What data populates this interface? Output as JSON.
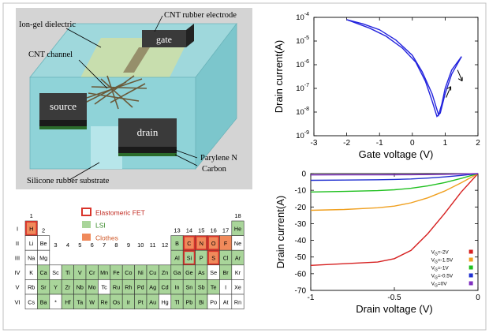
{
  "device": {
    "labels": {
      "ion_gel": "Ion-gel dielectric",
      "cnt_electrode": "CNT rubber electrode",
      "cnt_channel": "CNT channel",
      "gate": "gate",
      "source": "source",
      "drain": "drain",
      "parylene": "Parylene N",
      "carbon": "Carbon",
      "substrate": "Silicone rubber substrate"
    },
    "colors": {
      "gel": "#8fd3d8",
      "electrode": "#3a3a3a",
      "channel_pad": "#c8d9a0",
      "background": "#d4d4d4"
    }
  },
  "periodic_table": {
    "legend": [
      {
        "label": "Elastomeric FET",
        "kind": "outline",
        "color": "#d9342b"
      },
      {
        "label": "LSI",
        "kind": "fill",
        "color": "#a9d59a"
      },
      {
        "label": "Clothes",
        "kind": "fill",
        "color": "#f08a5b"
      }
    ],
    "group_labels": [
      "1",
      "2",
      "3",
      "4",
      "5",
      "6",
      "7",
      "8",
      "9",
      "10",
      "11",
      "12",
      "13",
      "14",
      "15",
      "16",
      "17",
      "18"
    ],
    "period_labels": [
      "I",
      "II",
      "III",
      "IV",
      "V",
      "VI"
    ],
    "elements": [
      {
        "s": "H",
        "p": 1,
        "g": 1,
        "lsi": false,
        "clothes": true,
        "fet": true
      },
      {
        "s": "He",
        "p": 1,
        "g": 18,
        "lsi": true,
        "clothes": false,
        "fet": false
      },
      {
        "s": "Li",
        "p": 2,
        "g": 1,
        "lsi": false,
        "clothes": false,
        "fet": false
      },
      {
        "s": "Be",
        "p": 2,
        "g": 2,
        "lsi": false,
        "clothes": false,
        "fet": false
      },
      {
        "s": "B",
        "p": 2,
        "g": 13,
        "lsi": true,
        "clothes": false,
        "fet": false
      },
      {
        "s": "C",
        "p": 2,
        "g": 14,
        "lsi": false,
        "clothes": true,
        "fet": true
      },
      {
        "s": "N",
        "p": 2,
        "g": 15,
        "lsi": false,
        "clothes": true,
        "fet": true
      },
      {
        "s": "O",
        "p": 2,
        "g": 16,
        "lsi": false,
        "clothes": true,
        "fet": true
      },
      {
        "s": "F",
        "p": 2,
        "g": 17,
        "lsi": false,
        "clothes": true,
        "fet": false
      },
      {
        "s": "Ne",
        "p": 2,
        "g": 18,
        "lsi": false,
        "clothes": false,
        "fet": false
      },
      {
        "s": "Na",
        "p": 3,
        "g": 1,
        "lsi": false,
        "clothes": false,
        "fet": false
      },
      {
        "s": "Mg",
        "p": 3,
        "g": 2,
        "lsi": false,
        "clothes": false,
        "fet": false
      },
      {
        "s": "Al",
        "p": 3,
        "g": 13,
        "lsi": true,
        "clothes": false,
        "fet": false
      },
      {
        "s": "Si",
        "p": 3,
        "g": 14,
        "lsi": true,
        "clothes": false,
        "fet": true
      },
      {
        "s": "P",
        "p": 3,
        "g": 15,
        "lsi": true,
        "clothes": false,
        "fet": false
      },
      {
        "s": "S",
        "p": 3,
        "g": 16,
        "lsi": false,
        "clothes": true,
        "fet": true
      },
      {
        "s": "Cl",
        "p": 3,
        "g": 17,
        "lsi": true,
        "clothes": false,
        "fet": false
      },
      {
        "s": "Ar",
        "p": 3,
        "g": 18,
        "lsi": true,
        "clothes": false,
        "fet": false
      },
      {
        "s": "K",
        "p": 4,
        "g": 1,
        "lsi": false,
        "clothes": false,
        "fet": false
      },
      {
        "s": "Ca",
        "p": 4,
        "g": 2,
        "lsi": true,
        "clothes": false,
        "fet": false
      },
      {
        "s": "Sc",
        "p": 4,
        "g": 3,
        "lsi": false,
        "clothes": false,
        "fet": false
      },
      {
        "s": "Ti",
        "p": 4,
        "g": 4,
        "lsi": true,
        "clothes": false,
        "fet": false
      },
      {
        "s": "V",
        "p": 4,
        "g": 5,
        "lsi": true,
        "clothes": false,
        "fet": false
      },
      {
        "s": "Cr",
        "p": 4,
        "g": 6,
        "lsi": true,
        "clothes": false,
        "fet": false
      },
      {
        "s": "Mn",
        "p": 4,
        "g": 7,
        "lsi": true,
        "clothes": false,
        "fet": false
      },
      {
        "s": "Fe",
        "p": 4,
        "g": 8,
        "lsi": true,
        "clothes": false,
        "fet": false
      },
      {
        "s": "Co",
        "p": 4,
        "g": 9,
        "lsi": true,
        "clothes": false,
        "fet": false
      },
      {
        "s": "Ni",
        "p": 4,
        "g": 10,
        "lsi": true,
        "clothes": false,
        "fet": false
      },
      {
        "s": "Cu",
        "p": 4,
        "g": 11,
        "lsi": true,
        "clothes": false,
        "fet": false
      },
      {
        "s": "Zn",
        "p": 4,
        "g": 12,
        "lsi": true,
        "clothes": false,
        "fet": false
      },
      {
        "s": "Ga",
        "p": 4,
        "g": 13,
        "lsi": true,
        "clothes": false,
        "fet": false
      },
      {
        "s": "Ge",
        "p": 4,
        "g": 14,
        "lsi": true,
        "clothes": false,
        "fet": false
      },
      {
        "s": "As",
        "p": 4,
        "g": 15,
        "lsi": true,
        "clothes": false,
        "fet": false
      },
      {
        "s": "Se",
        "p": 4,
        "g": 16,
        "lsi": false,
        "clothes": false,
        "fet": false
      },
      {
        "s": "Br",
        "p": 4,
        "g": 17,
        "lsi": true,
        "clothes": false,
        "fet": false
      },
      {
        "s": "Kr",
        "p": 4,
        "g": 18,
        "lsi": false,
        "clothes": false,
        "fet": false
      },
      {
        "s": "Rb",
        "p": 5,
        "g": 1,
        "lsi": false,
        "clothes": false,
        "fet": false
      },
      {
        "s": "Sr",
        "p": 5,
        "g": 2,
        "lsi": true,
        "clothes": false,
        "fet": false
      },
      {
        "s": "Y",
        "p": 5,
        "g": 3,
        "lsi": true,
        "clothes": false,
        "fet": false
      },
      {
        "s": "Zr",
        "p": 5,
        "g": 4,
        "lsi": true,
        "clothes": false,
        "fet": false
      },
      {
        "s": "Nb",
        "p": 5,
        "g": 5,
        "lsi": true,
        "clothes": false,
        "fet": false
      },
      {
        "s": "Mo",
        "p": 5,
        "g": 6,
        "lsi": true,
        "clothes": false,
        "fet": false
      },
      {
        "s": "Tc",
        "p": 5,
        "g": 7,
        "lsi": false,
        "clothes": false,
        "fet": false
      },
      {
        "s": "Ru",
        "p": 5,
        "g": 8,
        "lsi": true,
        "clothes": false,
        "fet": false
      },
      {
        "s": "Rh",
        "p": 5,
        "g": 9,
        "lsi": true,
        "clothes": false,
        "fet": false
      },
      {
        "s": "Pd",
        "p": 5,
        "g": 10,
        "lsi": true,
        "clothes": false,
        "fet": false
      },
      {
        "s": "Ag",
        "p": 5,
        "g": 11,
        "lsi": true,
        "clothes": false,
        "fet": false
      },
      {
        "s": "Cd",
        "p": 5,
        "g": 12,
        "lsi": true,
        "clothes": false,
        "fet": false
      },
      {
        "s": "In",
        "p": 5,
        "g": 13,
        "lsi": true,
        "clothes": false,
        "fet": false
      },
      {
        "s": "Sn",
        "p": 5,
        "g": 14,
        "lsi": true,
        "clothes": false,
        "fet": false
      },
      {
        "s": "Sb",
        "p": 5,
        "g": 15,
        "lsi": true,
        "clothes": false,
        "fet": false
      },
      {
        "s": "Te",
        "p": 5,
        "g": 16,
        "lsi": true,
        "clothes": false,
        "fet": false
      },
      {
        "s": "I",
        "p": 5,
        "g": 17,
        "lsi": false,
        "clothes": false,
        "fet": false
      },
      {
        "s": "Xe",
        "p": 5,
        "g": 18,
        "lsi": false,
        "clothes": false,
        "fet": false
      },
      {
        "s": "Cs",
        "p": 6,
        "g": 1,
        "lsi": false,
        "clothes": false,
        "fet": false
      },
      {
        "s": "Ba",
        "p": 6,
        "g": 2,
        "lsi": true,
        "clothes": false,
        "fet": false
      },
      {
        "s": "*",
        "p": 6,
        "g": 3,
        "lsi": false,
        "clothes": false,
        "fet": false
      },
      {
        "s": "Hf",
        "p": 6,
        "g": 4,
        "lsi": true,
        "clothes": false,
        "fet": false
      },
      {
        "s": "Ta",
        "p": 6,
        "g": 5,
        "lsi": true,
        "clothes": false,
        "fet": false
      },
      {
        "s": "W",
        "p": 6,
        "g": 6,
        "lsi": true,
        "clothes": false,
        "fet": false
      },
      {
        "s": "Re",
        "p": 6,
        "g": 7,
        "lsi": true,
        "clothes": false,
        "fet": false
      },
      {
        "s": "Os",
        "p": 6,
        "g": 8,
        "lsi": true,
        "clothes": false,
        "fet": false
      },
      {
        "s": "Ir",
        "p": 6,
        "g": 9,
        "lsi": true,
        "clothes": false,
        "fet": false
      },
      {
        "s": "Pt",
        "p": 6,
        "g": 10,
        "lsi": true,
        "clothes": false,
        "fet": false
      },
      {
        "s": "Au",
        "p": 6,
        "g": 11,
        "lsi": true,
        "clothes": false,
        "fet": false
      },
      {
        "s": "Hg",
        "p": 6,
        "g": 12,
        "lsi": false,
        "clothes": false,
        "fet": false
      },
      {
        "s": "Tl",
        "p": 6,
        "g": 13,
        "lsi": true,
        "clothes": false,
        "fet": false
      },
      {
        "s": "Pb",
        "p": 6,
        "g": 14,
        "lsi": true,
        "clothes": false,
        "fet": false
      },
      {
        "s": "Bi",
        "p": 6,
        "g": 15,
        "lsi": true,
        "clothes": false,
        "fet": false
      },
      {
        "s": "Po",
        "p": 6,
        "g": 16,
        "lsi": false,
        "clothes": false,
        "fet": false
      },
      {
        "s": "At",
        "p": 6,
        "g": 17,
        "lsi": false,
        "clothes": false,
        "fet": false
      },
      {
        "s": "Rn",
        "p": 6,
        "g": 18,
        "lsi": false,
        "clothes": false,
        "fet": false
      }
    ]
  },
  "chart_data": [
    {
      "type": "line",
      "xlabel": "Gate voltage (V)",
      "ylabel": "Drain current(A)",
      "xlim": [
        -3,
        2
      ],
      "ylim": [
        1e-09,
        0.0001
      ],
      "yscale": "log",
      "xticks": [
        "-3",
        "-2",
        "-1",
        "0",
        "1",
        "2"
      ],
      "yticks": [
        "10-9",
        "10-8",
        "10-7",
        "10-6",
        "10-5",
        "10-4"
      ],
      "series": [
        {
          "color": "#2222dd",
          "x": [
            -2,
            -1.5,
            -1,
            -0.5,
            0,
            0.3,
            0.6,
            0.8,
            0.9,
            1.0,
            1.2,
            1.5
          ],
          "y": [
            8e-05,
            5.3e-05,
            3e-05,
            1.1e-05,
            2.5e-06,
            5e-07,
            6e-08,
            7.5e-09,
            2.2e-08,
            1e-07,
            6e-07,
            2.2e-06
          ]
        },
        {
          "color": "#2222dd",
          "x": [
            1.5,
            1.2,
            1.0,
            0.85,
            0.75,
            0.6,
            0.4,
            0.1,
            -0.3,
            -0.8,
            -1.3,
            -2
          ],
          "y": [
            2.2e-06,
            4e-07,
            6e-08,
            9e-09,
            6.5e-09,
            3e-08,
            2e-07,
            1.3e-06,
            5e-06,
            1.6e-05,
            3.5e-05,
            8e-05
          ]
        }
      ]
    },
    {
      "type": "line",
      "xlabel": "Drain voltage (V)",
      "ylabel": "Drain current(A)",
      "xlim": [
        -1,
        0
      ],
      "ylim": [
        -70,
        0
      ],
      "xticks": [
        "-1",
        "-0.5",
        "0"
      ],
      "yticks": [
        "0",
        "-10",
        "-20",
        "-30",
        "-40",
        "-50",
        "-60",
        "-70"
      ],
      "legend_position": "bottom-right",
      "series": [
        {
          "name": "VG=-2V",
          "color": "#d62020",
          "x": [
            -1,
            -0.8,
            -0.6,
            -0.5,
            -0.4,
            -0.3,
            -0.2,
            -0.1,
            0
          ],
          "y": [
            -55,
            -54,
            -53,
            -51,
            -46,
            -36,
            -24,
            -11,
            0
          ]
        },
        {
          "name": "VG=-1.5V",
          "color": "#f0a020",
          "x": [
            -1,
            -0.8,
            -0.6,
            -0.5,
            -0.4,
            -0.3,
            -0.2,
            -0.1,
            0
          ],
          "y": [
            -22,
            -21.5,
            -20.5,
            -19.5,
            -17.5,
            -14.5,
            -10.5,
            -5.5,
            0
          ]
        },
        {
          "name": "VG=-1V",
          "color": "#20c020",
          "x": [
            -1,
            -0.8,
            -0.6,
            -0.5,
            -0.4,
            -0.3,
            -0.2,
            -0.1,
            0
          ],
          "y": [
            -11,
            -10.7,
            -10.2,
            -9.7,
            -8.8,
            -7.4,
            -5.4,
            -2.9,
            0
          ]
        },
        {
          "name": "VG=-0.5V",
          "color": "#2030d0",
          "x": [
            -1,
            -0.8,
            -0.6,
            -0.5,
            -0.4,
            -0.3,
            -0.2,
            -0.1,
            0
          ],
          "y": [
            -4,
            -3.9,
            -3.7,
            -3.5,
            -3.2,
            -2.7,
            -2,
            -1.1,
            0
          ]
        },
        {
          "name": "VG=0V",
          "color": "#8030c0",
          "x": [
            -1,
            -0.8,
            -0.6,
            -0.5,
            -0.4,
            -0.3,
            -0.2,
            -0.1,
            0
          ],
          "y": [
            -0.8,
            -0.78,
            -0.74,
            -0.7,
            -0.64,
            -0.55,
            -0.42,
            -0.24,
            0
          ]
        }
      ]
    }
  ]
}
